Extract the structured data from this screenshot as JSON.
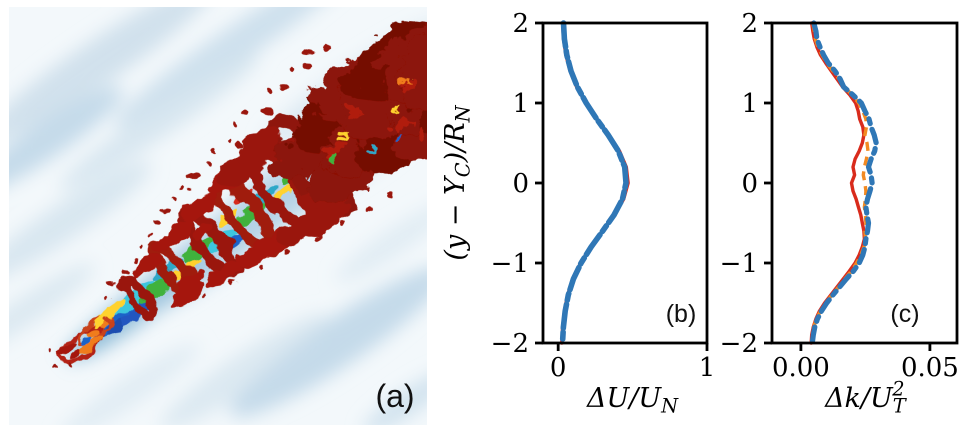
{
  "figure": {
    "panels": {
      "a": {
        "label": "(a)"
      },
      "b": {
        "label": "(b)"
      },
      "c": {
        "label": "(c)"
      }
    }
  },
  "colors": {
    "series_red": "#d92b1c",
    "series_orange": "#f28a22",
    "series_blue": "#2f77b6",
    "axis": "#000000",
    "flow_isosurface_dark_red": "#8c1207",
    "flow_background_tint": "#cddfeb"
  },
  "chart_data": [
    {
      "id": "b",
      "type": "line",
      "title": "",
      "xlabel": "ΔU/U_N",
      "xlabel_segments": [
        {
          "t": "ΔU/U"
        },
        {
          "t": "N",
          "pos": "sub"
        }
      ],
      "ylabel": "(y − Y_C)/R_N",
      "ylabel_segments": [
        {
          "t": "(y − Y"
        },
        {
          "t": "C",
          "pos": "sub"
        },
        {
          "t": ")/R"
        },
        {
          "t": "N",
          "pos": "sub"
        }
      ],
      "xlim": [
        -0.102,
        1.0
      ],
      "ylim": [
        -2,
        2
      ],
      "xticks": [
        0,
        1
      ],
      "xtick_labels": [
        "0",
        "1"
      ],
      "yticks": [
        2,
        1,
        0,
        -1,
        -2
      ],
      "ytick_labels": [
        "2",
        "1",
        "0",
        "−1",
        "−2"
      ],
      "grid": false,
      "legend": null,
      "y": [
        2.0,
        1.8,
        1.6,
        1.4,
        1.2,
        1.0,
        0.8,
        0.6,
        0.4,
        0.2,
        0.0,
        -0.2,
        -0.4,
        -0.6,
        -0.8,
        -1.0,
        -1.2,
        -1.4,
        -1.6,
        -1.8,
        -2.0
      ],
      "series": [
        {
          "name": "red-solid",
          "color": "#d92b1c",
          "width": 3.4,
          "dash": null,
          "cap": "round",
          "x": [
            0.03,
            0.036,
            0.052,
            0.08,
            0.124,
            0.186,
            0.262,
            0.342,
            0.412,
            0.458,
            0.47,
            0.44,
            0.378,
            0.298,
            0.218,
            0.15,
            0.098,
            0.063,
            0.042,
            0.03,
            0.024
          ]
        },
        {
          "name": "orange-dashed",
          "color": "#f28a22",
          "width": 3.4,
          "dash": "10 6",
          "cap": "butt",
          "x": [
            0.034,
            0.04,
            0.056,
            0.084,
            0.127,
            0.185,
            0.257,
            0.334,
            0.403,
            0.448,
            0.458,
            0.431,
            0.373,
            0.296,
            0.219,
            0.152,
            0.1,
            0.066,
            0.045,
            0.033,
            0.027
          ]
        },
        {
          "name": "blue-dash-dot",
          "color": "#2f77b6",
          "width": 5.6,
          "dash": "24 4 7 4",
          "cap": "round",
          "x": [
            0.036,
            0.042,
            0.058,
            0.086,
            0.129,
            0.188,
            0.259,
            0.336,
            0.404,
            0.447,
            0.456,
            0.432,
            0.375,
            0.299,
            0.221,
            0.154,
            0.102,
            0.068,
            0.047,
            0.035,
            0.029
          ]
        }
      ]
    },
    {
      "id": "c",
      "type": "line",
      "title": "",
      "xlabel": "Δk/U_T^2",
      "xlabel_segments": [
        {
          "t": "Δk/U"
        },
        {
          "t": "T",
          "pos": "sub"
        },
        {
          "t": "2",
          "pos": "sup",
          "stack": true
        }
      ],
      "ylabel": "",
      "xlim": [
        -0.0112,
        0.0605
      ],
      "ylim": [
        -2,
        2
      ],
      "xticks": [
        0,
        0.05
      ],
      "xtick_labels": [
        "0.00",
        "0.05"
      ],
      "yticks": [
        2,
        1,
        0,
        -1,
        -2
      ],
      "ytick_labels": [
        "2",
        "1",
        "0",
        "−1",
        "−2"
      ],
      "grid": false,
      "legend": null,
      "y": [
        2.0,
        1.9,
        1.8,
        1.7,
        1.6,
        1.5,
        1.4,
        1.3,
        1.2,
        1.1,
        1.0,
        0.9,
        0.8,
        0.7,
        0.6,
        0.5,
        0.4,
        0.3,
        0.2,
        0.1,
        0.0,
        -0.1,
        -0.2,
        -0.3,
        -0.4,
        -0.5,
        -0.6,
        -0.7,
        -0.8,
        -0.9,
        -1.0,
        -1.1,
        -1.2,
        -1.3,
        -1.4,
        -1.5,
        -1.6,
        -1.7,
        -1.8,
        -1.9,
        -2.0
      ],
      "series": [
        {
          "name": "red-solid",
          "color": "#d92b1c",
          "width": 3.4,
          "dash": null,
          "cap": "round",
          "x": [
            0.0042,
            0.0046,
            0.0052,
            0.0062,
            0.0076,
            0.0096,
            0.0118,
            0.014,
            0.0162,
            0.019,
            0.0212,
            0.0222,
            0.0228,
            0.024,
            0.0244,
            0.0238,
            0.0226,
            0.021,
            0.0202,
            0.0208,
            0.0196,
            0.0202,
            0.0214,
            0.0223,
            0.0232,
            0.0238,
            0.0244,
            0.0246,
            0.0238,
            0.0226,
            0.021,
            0.0188,
            0.0164,
            0.014,
            0.0116,
            0.0092,
            0.0072,
            0.0058,
            0.0048,
            0.0042,
            0.004
          ]
        },
        {
          "name": "orange-dashed",
          "color": "#f28a22",
          "width": 3.4,
          "dash": "9 6",
          "cap": "butt",
          "x": [
            0.0046,
            0.0052,
            0.0056,
            0.0066,
            0.0082,
            0.01,
            0.0124,
            0.0148,
            0.017,
            0.0198,
            0.0224,
            0.024,
            0.0252,
            0.0254,
            0.0248,
            0.0256,
            0.026,
            0.0254,
            0.0246,
            0.0242,
            0.0248,
            0.0252,
            0.025,
            0.0246,
            0.025,
            0.0252,
            0.0248,
            0.025,
            0.0244,
            0.0232,
            0.0216,
            0.0196,
            0.017,
            0.0146,
            0.012,
            0.0096,
            0.0076,
            0.006,
            0.005,
            0.0045,
            0.0042
          ]
        },
        {
          "name": "blue-dash-dot",
          "color": "#2f77b6",
          "width": 5.2,
          "dash": "14 6 5 6",
          "cap": "round",
          "x": [
            0.005,
            0.0058,
            0.0062,
            0.0074,
            0.0088,
            0.0106,
            0.0132,
            0.0152,
            0.0166,
            0.0202,
            0.0234,
            0.0248,
            0.0264,
            0.0272,
            0.0284,
            0.0292,
            0.0286,
            0.0272,
            0.0262,
            0.0272,
            0.0276,
            0.0268,
            0.0258,
            0.0252,
            0.0256,
            0.0262,
            0.0258,
            0.0252,
            0.0248,
            0.024,
            0.0226,
            0.0204,
            0.0176,
            0.015,
            0.0124,
            0.01,
            0.008,
            0.0064,
            0.0054,
            0.0048,
            0.0044
          ]
        }
      ]
    }
  ]
}
